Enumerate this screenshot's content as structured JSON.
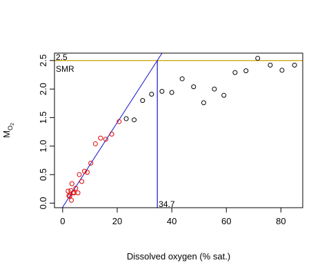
{
  "chart_data": {
    "type": "scatter",
    "xlabel": "Dissolved oxygen (% sat.)",
    "ylabel_main": "M",
    "ylabel_sub": "O",
    "ylabel_subsub": "2",
    "xlim": [
      -3,
      88
    ],
    "ylim": [
      -0.08,
      2.63
    ],
    "xticks": [
      0,
      20,
      40,
      60,
      80
    ],
    "xtick_labels": [
      "0",
      "20",
      "40",
      "60",
      "80"
    ],
    "yticks": [
      0,
      0.5,
      1,
      1.5,
      2,
      2.5
    ],
    "ytick_labels": [
      "0.0",
      "0.5",
      "1.0",
      "1.5",
      "2.0",
      "2.5"
    ],
    "series": [
      {
        "color": "#dd0000",
        "points": [
          [
            2.0,
            0.21
          ],
          [
            2.3,
            0.13
          ],
          [
            2.6,
            0.12
          ],
          [
            3.0,
            0.22
          ],
          [
            3.2,
            0.05
          ],
          [
            3.4,
            0.34
          ],
          [
            3.8,
            0.18
          ],
          [
            4.2,
            0.18
          ],
          [
            4.8,
            0.26
          ],
          [
            5.6,
            0.18
          ],
          [
            6.1,
            0.5
          ],
          [
            7.0,
            0.38
          ],
          [
            8.0,
            0.56
          ],
          [
            9.0,
            0.54
          ],
          [
            10.3,
            0.7
          ],
          [
            12.0,
            1.04
          ],
          [
            13.9,
            1.14
          ],
          [
            15.8,
            1.12
          ],
          [
            18.0,
            1.21
          ],
          [
            20.7,
            1.43
          ]
        ]
      },
      {
        "color": "#000000",
        "points": [
          [
            23.3,
            1.48
          ],
          [
            26.2,
            1.46
          ],
          [
            29.3,
            1.8
          ],
          [
            32.6,
            1.91
          ],
          [
            36.4,
            1.96
          ],
          [
            40.0,
            1.94
          ],
          [
            43.8,
            2.18
          ],
          [
            48.0,
            2.04
          ],
          [
            51.7,
            1.76
          ],
          [
            55.6,
            2.0
          ],
          [
            59.1,
            1.89
          ],
          [
            63.2,
            2.29
          ],
          [
            67.2,
            2.32
          ],
          [
            71.5,
            2.54
          ],
          [
            76.1,
            2.42
          ],
          [
            80.4,
            2.33
          ],
          [
            85.0,
            2.42
          ]
        ]
      }
    ],
    "smr_line": {
      "y": 2.5,
      "color": "#c8a000"
    },
    "smr_value_label": "2.5",
    "smr_label": "SMR",
    "regression_line": {
      "intercept": -0.07,
      "slope": 0.0741,
      "color": "#1010cc"
    },
    "pcrit_x": 34.7,
    "pcrit_label": "34.7",
    "pcrit_color": "#1010cc"
  }
}
